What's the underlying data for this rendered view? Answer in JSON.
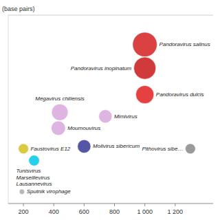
{
  "chart_data": {
    "type": "scatter",
    "ylabel": "(base pairs)",
    "x": [
      1000,
      1000,
      1000,
      440,
      430,
      740,
      600,
      200,
      270,
      1300,
      190
    ],
    "values": [
      270,
      230,
      185,
      155,
      128,
      148,
      97,
      93,
      73,
      93,
      20
    ],
    "sizes": [
      220,
      180,
      120,
      100,
      75,
      65,
      65,
      38,
      42,
      38,
      10
    ],
    "colors": [
      "#d42020",
      "#c81818",
      "#e02020",
      "#d8a8da",
      "#d8a8da",
      "#d8a8da",
      "#383898",
      "#d4c020",
      "#00c8e8",
      "#888888",
      "#aaaaaa"
    ],
    "annotations": [
      "Pandoravirus salinus",
      "Pandoravirus inopinatum",
      "Pandoravirus dulcis",
      "Megavirus chiliensis",
      "Moumouvirus",
      "Mimivirus",
      "Molivirus sibericum",
      "Faustovirus E12",
      "Tunisvirus\nMarseillevirus\nLausannevirus",
      "Pithovirus sibe…",
      "Sputnik virophage"
    ],
    "xlim": [
      100,
      1450
    ],
    "ylim": [
      0,
      320
    ],
    "xticks": [
      200,
      400,
      600,
      800,
      {
        "value": 1000,
        "label": "1 000"
      },
      {
        "value": 1200,
        "label": "1 200"
      }
    ],
    "tick_labels": "x",
    "grid": false
  }
}
